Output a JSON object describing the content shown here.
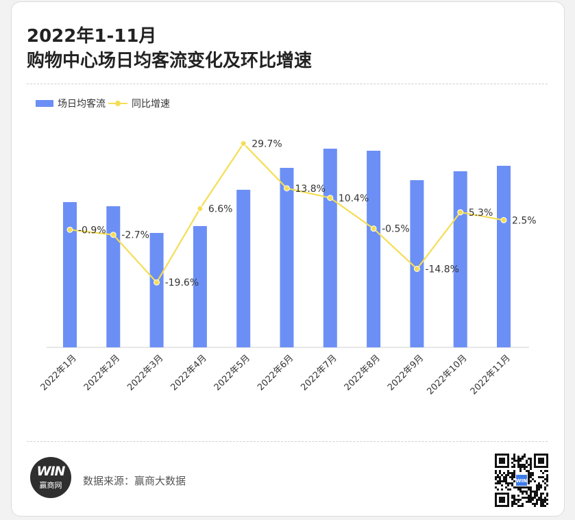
{
  "title": {
    "line1": "2022年1-11月",
    "line2": "购物中心场日均客流变化及环比增速"
  },
  "colors": {
    "bar": "#6b8ff5",
    "line": "#f5dd55",
    "text": "#333333"
  },
  "footer": {
    "source": "数据来源：赢商大数据",
    "logo_mark": "WIN",
    "logo_name": "赢商网",
    "qr_badge": "WIN"
  },
  "chart_data": {
    "type": "bar",
    "categories": [
      "2022年1月",
      "2022年2月",
      "2022年3月",
      "2022年4月",
      "2022年5月",
      "2022年6月",
      "2022年7月",
      "2022年8月",
      "2022年9月",
      "2022年10月",
      "2022年11月"
    ],
    "series": [
      {
        "name": "场日均客流",
        "type": "bar",
        "values": [
          212,
          206,
          167,
          177,
          230,
          262,
          290,
          287,
          244,
          257,
          265
        ]
      },
      {
        "name": "同比增速",
        "type": "line",
        "values": [
          -0.9,
          -2.7,
          -19.6,
          6.6,
          29.7,
          13.8,
          10.4,
          -0.5,
          -14.8,
          5.3,
          2.5
        ],
        "labels": [
          "-0.9%",
          "-2.7%",
          "-19.6%",
          "6.6%",
          "29.7%",
          "13.8%",
          "10.4%",
          "-0.5%",
          "-14.8%",
          "5.3%",
          "2.5%"
        ]
      }
    ],
    "bar_ylim": [
      0,
      300
    ],
    "line_ylim": [
      -30,
      32
    ],
    "legend": "top-left",
    "grid": false
  }
}
